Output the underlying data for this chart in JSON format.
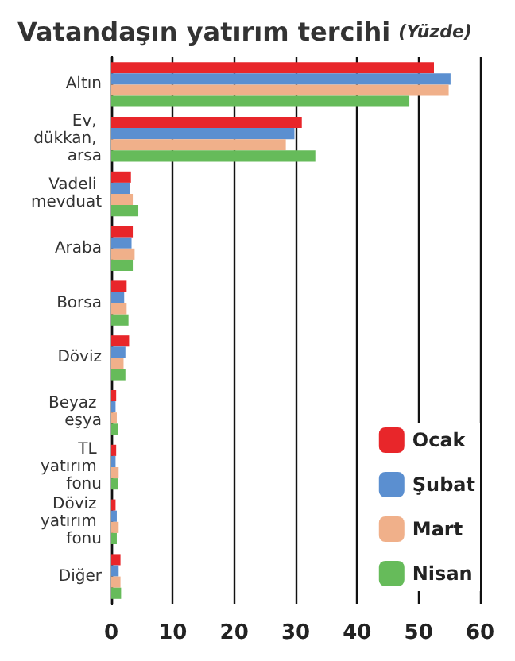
{
  "chart_data": {
    "type": "bar",
    "orientation": "horizontal",
    "title": "Vatandaşın yatırım tercihi",
    "subtitle": "(Yüzde)",
    "categories": [
      "Altın",
      "Ev, dükkan, arsa",
      "Vadeli mevduat",
      "Araba",
      "Borsa",
      "Döviz",
      "Beyaz eşya",
      "TL yatırım fonu",
      "Döviz yatırım fonu",
      "Diğer"
    ],
    "series": [
      {
        "name": "Ocak",
        "color": "#e8262a",
        "values": [
          52.5,
          31,
          3.2,
          3.5,
          2.5,
          2.9,
          0.8,
          0.8,
          0.7,
          1.5
        ]
      },
      {
        "name": "Şubat",
        "color": "#5b8fd0",
        "values": [
          55.2,
          29.8,
          3,
          3.3,
          2.1,
          2.3,
          0.7,
          0.7,
          0.9,
          1.2
        ]
      },
      {
        "name": "Mart",
        "color": "#f0b08a",
        "values": [
          54.9,
          28.4,
          3.5,
          3.8,
          2.5,
          2,
          0.9,
          1.2,
          1.2,
          1.5
        ]
      },
      {
        "name": "Nisan",
        "color": "#66bb5a",
        "values": [
          48.5,
          33.2,
          4.4,
          3.5,
          2.8,
          2.3,
          1.1,
          1.1,
          0.9,
          1.6
        ]
      }
    ],
    "xlim": [
      0,
      60
    ],
    "xticks": [
      0,
      10,
      20,
      30,
      40,
      50,
      60
    ],
    "grid": "x",
    "legend": "bottom right"
  }
}
